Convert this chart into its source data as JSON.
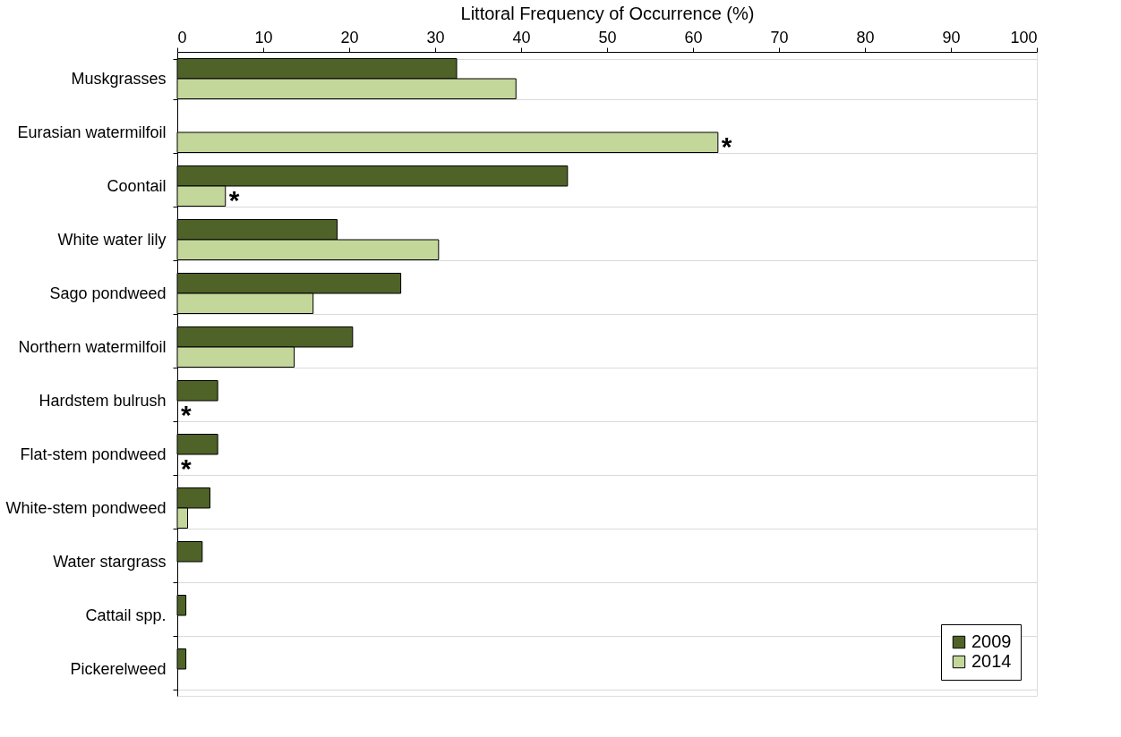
{
  "chart_data": {
    "type": "bar",
    "orientation": "horizontal",
    "xlabel": "Littoral Frequency of Occurrence (%)",
    "categories": [
      "Muskgrasses",
      "Eurasian watermilfoil",
      "Coontail",
      "White water lily",
      "Sago pondweed",
      "Northern watermilfoil",
      "Hardstem bulrush",
      "Flat-stem pondweed",
      "White-stem pondweed",
      "Water stargrass",
      "Cattail spp.",
      "Pickerelweed"
    ],
    "series": [
      {
        "name": "2009",
        "color": "#4f6228",
        "values": [
          32.5,
          null,
          45.4,
          18.6,
          26.0,
          20.4,
          4.7,
          4.7,
          3.8,
          2.9,
          1.0,
          1.0
        ]
      },
      {
        "name": "2014",
        "color": "#c4d79b",
        "values": [
          39.4,
          62.9,
          5.6,
          30.4,
          15.8,
          13.6,
          null,
          null,
          1.2,
          null,
          null,
          null
        ]
      }
    ],
    "xlim": [
      0,
      100
    ],
    "xticks": [
      0,
      10,
      20,
      30,
      40,
      50,
      60,
      70,
      80,
      90,
      100
    ],
    "grid": "y",
    "legend": "bottom right",
    "annotations": [
      {
        "text": "*",
        "x": 62.9,
        "y": "Eurasian watermilfoil"
      },
      {
        "text": "*",
        "x": 5.6,
        "y": "Coontail"
      },
      {
        "text": "*",
        "x": 0,
        "y": "Hardstem bulrush"
      },
      {
        "text": "*",
        "x": 0,
        "y": "Flat-stem pondweed"
      }
    ]
  }
}
